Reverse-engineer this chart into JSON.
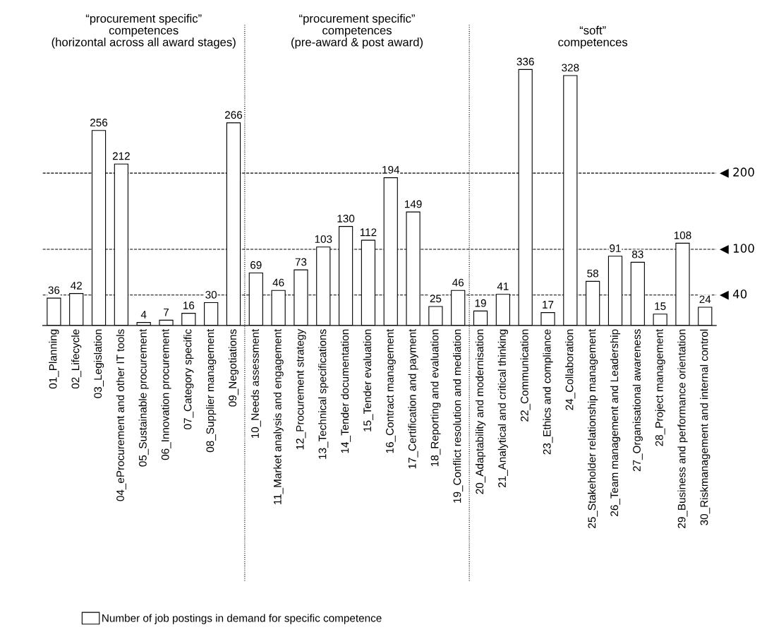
{
  "chart_data": {
    "type": "bar",
    "annotations": [
      "“procurement specific”\ncompetences\n(horizontal across all award stages)",
      "“procurement specific”\ncompetences\n(pre-award & post award)",
      "“soft”\ncompetences"
    ],
    "categories": [
      "01_Planning",
      "02_Lifecycle",
      "03_Legislation",
      "04_eProcurement and other IT tools",
      "05_Sustainable procurement",
      "06_Innovation procurement",
      "07_Category specific",
      "08_Supplier management",
      "09_Negotiations",
      "10_Needs assessment",
      "11_Market analysis and engagement",
      "12_Procurement strategy",
      "13_Technical specifications",
      "14_Tender documentation",
      "15_Tender evaluation",
      "16_Contract management",
      "17_Certification and payment",
      "18_Reporting and evaluation",
      "19_Conflict resolution and mediation",
      "20_Adaptability and modernisation",
      "21_Analytical and critical thinking",
      "22_Communication",
      "23_Ethics and compliance",
      "24_Collaboration",
      "25_Stakeholder relationship management",
      "26_Team management and Leadership",
      "27_Organisational awareness",
      "28_Project management",
      "29_Business and performance orientation",
      "30_Riskmanagement and internal control"
    ],
    "series": [
      {
        "name": "Number of job postings in demand for specific competence",
        "color": "#ffffff",
        "values": [
          36,
          42,
          256,
          212,
          4,
          7,
          16,
          30,
          266,
          69,
          46,
          73,
          103,
          130,
          112,
          194,
          149,
          25,
          46,
          19,
          41,
          336,
          17,
          328,
          58,
          91,
          83,
          15,
          108,
          24
        ]
      }
    ],
    "data_labels": true,
    "ref_lines": [
      {
        "axis": "y",
        "value": 40,
        "label": "◀ 40",
        "line_style": "dashed"
      },
      {
        "axis": "y",
        "value": 100,
        "label": "◀ 100",
        "line_style": "dashed"
      },
      {
        "axis": "y",
        "value": 200,
        "label": "◀ 200",
        "line_style": "dashed"
      }
    ],
    "tick_labels": "x",
    "grid": false,
    "legend": "bottom left"
  }
}
